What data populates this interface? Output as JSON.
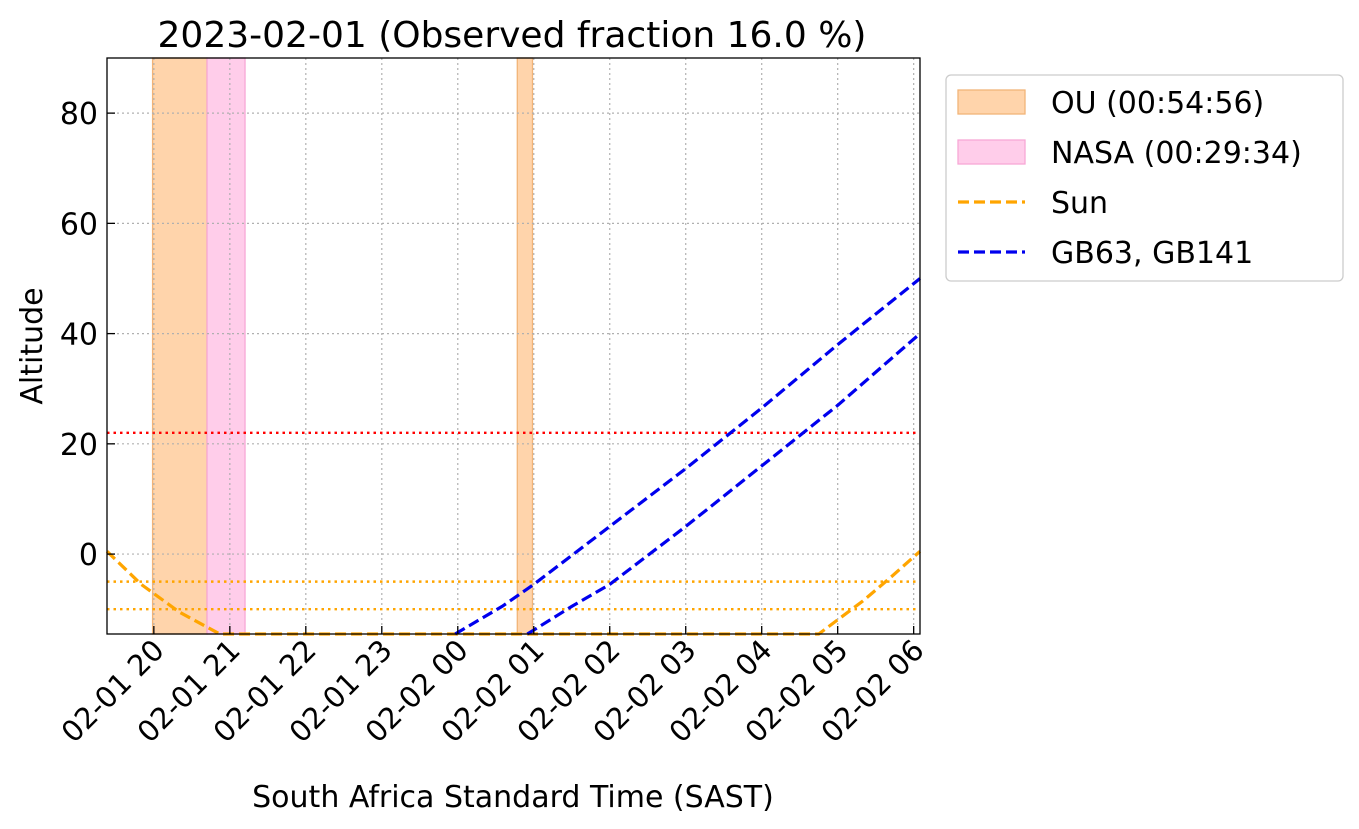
{
  "chart_data": {
    "type": "line",
    "title": "2023-02-01 (Observed fraction 16.0 %)",
    "xlabel": "South Africa Standard Time (SAST)",
    "ylabel": "Altitude",
    "xlim": [
      "2023-02-01 19:23",
      "2023-02-02 06:05"
    ],
    "ylim": [
      -14.5,
      90
    ],
    "x_ticks": [
      "02-01 20",
      "02-01 21",
      "02-01 22",
      "02-01 23",
      "02-02 00",
      "02-02 01",
      "02-02 02",
      "02-02 03",
      "02-02 04",
      "02-02 05",
      "02-02 06"
    ],
    "x_tick_times": [
      "2023-02-01 20:00",
      "2023-02-01 21:00",
      "2023-02-01 22:00",
      "2023-02-01 23:00",
      "2023-02-02 00:00",
      "2023-02-02 01:00",
      "2023-02-02 02:00",
      "2023-02-02 03:00",
      "2023-02-02 04:00",
      "2023-02-02 05:00",
      "2023-02-02 06:00"
    ],
    "y_ticks": [
      0,
      20,
      40,
      60,
      80
    ],
    "grid": true,
    "legend_position": "outside-right-top",
    "observed_fraction_percent": 16.0,
    "spans": [
      {
        "legend": "OU (00:54:56)",
        "color": "#ffd4ab",
        "edge": "#f2b478",
        "intervals": [
          [
            "2023-02-01 19:59",
            "2023-02-01 20:42"
          ],
          [
            "2023-02-02 00:47",
            "2023-02-02 00:59"
          ]
        ]
      },
      {
        "legend": "NASA (00:29:34)",
        "color": "#ffcdea",
        "edge": "#f7a8d6",
        "intervals": [
          [
            "2023-02-01 20:42",
            "2023-02-01 21:12"
          ]
        ]
      }
    ],
    "series": [
      {
        "name": "Sun",
        "color": "#ffa500",
        "style": "dashed",
        "x": [
          "2023-02-01 19:23",
          "2023-02-01 19:50",
          "2023-02-01 20:20",
          "2023-02-01 20:52",
          "2023-02-02 04:45",
          "2023-02-02 05:20",
          "2023-02-02 05:43",
          "2023-02-02 06:05"
        ],
        "y": [
          0.5,
          -5.5,
          -10.5,
          -14.5,
          -14.5,
          -8.5,
          -4,
          0.5
        ]
      },
      {
        "name": "GB63, GB141",
        "color": "#0000ee",
        "style": "dashed",
        "x": [
          "2023-02-01 23:58",
          "2023-02-02 00:35",
          "2023-02-02 01:00",
          "2023-02-02 02:00",
          "2023-02-02 03:00",
          "2023-02-02 04:00",
          "2023-02-02 05:00",
          "2023-02-02 06:05"
        ],
        "y": [
          -14.5,
          -9.5,
          -5.5,
          5,
          15.5,
          26.5,
          38,
          50
        ]
      },
      {
        "name": "",
        "color": "#0000ee",
        "style": "dashed",
        "x": [
          "2023-02-02 00:55",
          "2023-02-02 01:30",
          "2023-02-02 02:00",
          "2023-02-02 03:00",
          "2023-02-02 04:00",
          "2023-02-02 05:00",
          "2023-02-02 06:05"
        ],
        "y": [
          -14.5,
          -9.5,
          -5.5,
          5,
          16,
          27,
          40
        ]
      }
    ],
    "hlines": [
      {
        "y": 22,
        "color": "#ff0000",
        "style": "dotted"
      },
      {
        "y": -5,
        "color": "#ffa500",
        "style": "dotted"
      },
      {
        "y": -10,
        "color": "#ffa500",
        "style": "dotted"
      }
    ],
    "legend": [
      {
        "label": "OU (00:54:56)",
        "kind": "patch",
        "color": "#ffd4ab",
        "edge": "#f2b478"
      },
      {
        "label": "NASA (00:29:34)",
        "kind": "patch",
        "color": "#ffcdea",
        "edge": "#f7a8d6"
      },
      {
        "label": "Sun",
        "kind": "line",
        "color": "#ffa500"
      },
      {
        "label": "GB63, GB141",
        "kind": "line",
        "color": "#0000ee"
      }
    ]
  }
}
